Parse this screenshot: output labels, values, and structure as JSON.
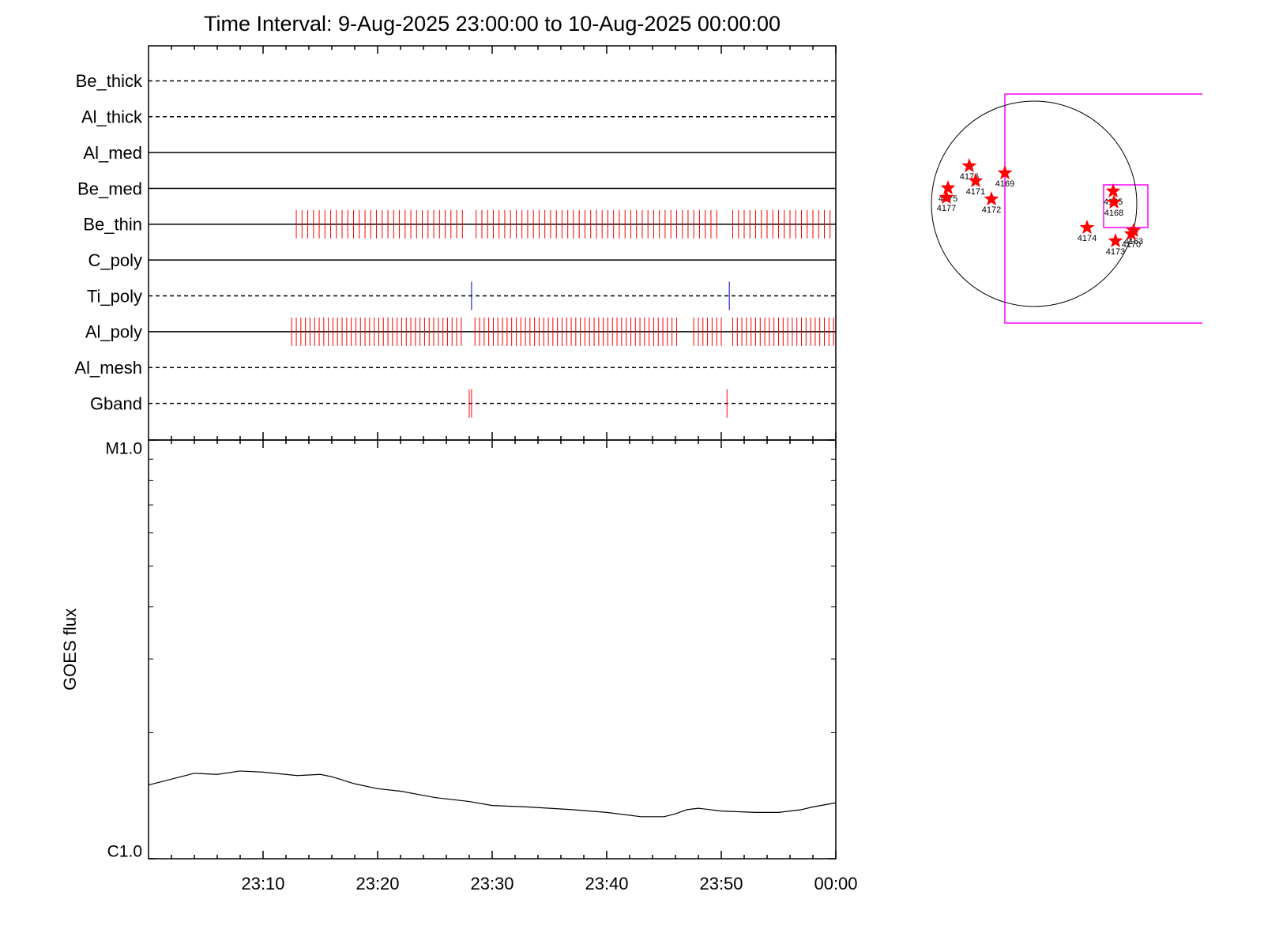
{
  "chart_data": [
    {
      "type": "timeline",
      "title": "Time Interval:  9-Aug-2025 23:00:00 to 10-Aug-2025 00:00:00",
      "categories": [
        "Be_thick",
        "Al_thick",
        "Al_med",
        "Be_med",
        "Be_thin",
        "C_poly",
        "Ti_poly",
        "Al_poly",
        "Al_mesh",
        "Gband"
      ],
      "line_styles": [
        "dashed",
        "dashed",
        "solid",
        "solid",
        "solid",
        "solid",
        "dashed",
        "solid",
        "dashed",
        "dashed"
      ],
      "event_colors": [
        "#ff0000",
        "#ff0000",
        "#ff0000",
        "#ff0000",
        "#ff0000",
        "#ff0000",
        "#0000cc",
        "#ff0000",
        "#ff0000",
        "#ff0000"
      ],
      "events": [
        [],
        [],
        [],
        [],
        [
          12.9,
          13.4,
          13.9,
          14.4,
          14.9,
          15.4,
          15.9,
          16.4,
          16.9,
          17.4,
          17.9,
          18.4,
          18.9,
          19.4,
          19.9,
          20.4,
          20.9,
          21.4,
          21.9,
          22.4,
          22.9,
          23.4,
          23.9,
          24.4,
          24.9,
          25.4,
          25.9,
          26.4,
          26.9,
          27.4,
          28.6,
          29.1,
          29.6,
          30.1,
          30.6,
          31.1,
          31.6,
          32.1,
          32.6,
          33.1,
          33.6,
          34.1,
          34.6,
          35.1,
          35.6,
          36.1,
          36.6,
          37.1,
          37.6,
          38.1,
          38.6,
          39.1,
          39.6,
          40.1,
          40.6,
          41.1,
          41.6,
          42.1,
          42.6,
          43.1,
          43.6,
          44.1,
          44.6,
          45.1,
          45.6,
          46.1,
          46.6,
          47.1,
          47.6,
          48.1,
          48.6,
          49.1,
          49.6,
          51.0,
          51.5,
          52.0,
          52.5,
          53.0,
          53.5,
          54.0,
          54.5,
          55.0,
          55.5,
          56.0,
          56.5,
          57.0,
          57.5,
          58.0,
          58.5,
          59.0,
          59.5
        ],
        [],
        [
          28.2,
          50.7
        ],
        [
          12.5,
          12.9,
          13.3,
          13.7,
          14.1,
          14.5,
          14.9,
          15.3,
          15.7,
          16.1,
          16.5,
          16.9,
          17.3,
          17.7,
          18.1,
          18.5,
          18.9,
          19.3,
          19.7,
          20.1,
          20.5,
          20.9,
          21.3,
          21.7,
          22.1,
          22.5,
          22.9,
          23.3,
          23.7,
          24.1,
          24.5,
          24.9,
          25.3,
          25.7,
          26.1,
          26.5,
          26.9,
          27.3,
          28.5,
          28.9,
          29.3,
          29.7,
          30.1,
          30.5,
          30.9,
          31.3,
          31.7,
          32.1,
          32.5,
          32.9,
          33.3,
          33.7,
          34.1,
          34.5,
          34.9,
          35.3,
          35.7,
          36.1,
          36.5,
          36.9,
          37.3,
          37.7,
          38.1,
          38.5,
          38.9,
          39.3,
          39.7,
          40.1,
          40.5,
          40.9,
          41.3,
          41.7,
          42.1,
          42.5,
          42.9,
          43.3,
          43.7,
          44.1,
          44.5,
          44.9,
          45.3,
          45.7,
          46.1,
          47.6,
          48.0,
          48.4,
          48.8,
          49.2,
          49.6,
          50.0,
          51.0,
          51.4,
          51.8,
          52.2,
          52.6,
          53.0,
          53.4,
          53.8,
          54.2,
          54.6,
          55.0,
          55.4,
          55.8,
          56.2,
          56.6,
          57.0,
          57.4,
          57.8,
          58.2,
          58.6,
          59.0,
          59.4,
          59.8
        ],
        [],
        [
          28.0,
          28.2,
          50.5
        ]
      ]
    },
    {
      "type": "line",
      "ylabel": "GOES flux",
      "log_scale": true,
      "color": "#000000",
      "x": [
        0,
        4,
        6,
        8,
        10,
        13,
        15,
        16,
        18,
        20,
        22,
        25,
        28,
        30,
        33,
        37,
        40,
        43,
        45,
        46,
        47,
        48,
        50,
        53,
        55,
        57,
        58,
        60
      ],
      "values": [
        1.5e-06,
        1.6e-06,
        1.59e-06,
        1.62e-06,
        1.61e-06,
        1.58e-06,
        1.59e-06,
        1.57e-06,
        1.51e-06,
        1.47e-06,
        1.45e-06,
        1.4e-06,
        1.37e-06,
        1.34e-06,
        1.33e-06,
        1.31e-06,
        1.29e-06,
        1.26e-06,
        1.26e-06,
        1.28e-06,
        1.31e-06,
        1.32e-06,
        1.3e-06,
        1.29e-06,
        1.29e-06,
        1.31e-06,
        1.33e-06,
        1.36e-06
      ],
      "xlim": [
        0,
        60
      ],
      "xticks": [
        {
          "value": 10,
          "label": "23:10"
        },
        {
          "value": 20,
          "label": "23:20"
        },
        {
          "value": 30,
          "label": "23:30"
        },
        {
          "value": 40,
          "label": "23:40"
        },
        {
          "value": 50,
          "label": "23:50"
        },
        {
          "value": 60,
          "label": "00:00"
        }
      ],
      "x_minor_ticks": [
        2,
        4,
        6,
        8,
        12,
        14,
        16,
        18,
        22,
        24,
        26,
        28,
        32,
        34,
        36,
        38,
        42,
        44,
        46,
        48,
        52,
        54,
        56,
        58
      ],
      "ylim": [
        1e-06,
        1e-05
      ],
      "yticks": [
        {
          "value": 1e-05,
          "label": "M1.0"
        },
        {
          "value": 1e-06,
          "label": "C1.0"
        }
      ],
      "y_minor_ticks": [
        2e-06,
        3e-06,
        4e-06,
        5e-06,
        6e-06,
        7e-06,
        8e-06,
        9e-06
      ]
    },
    {
      "type": "scatter",
      "color": "#ff0000",
      "xlim": [
        -1000,
        1000
      ],
      "ylim": [
        -1000,
        1000
      ],
      "solar_radius": 960,
      "labels": [
        "4176",
        "4171",
        "4169",
        "4175",
        "4177",
        "4172",
        "4165",
        "4168",
        "4174",
        "4173",
        "4163",
        "4170"
      ],
      "x": [
        -606,
        -547,
        -273,
        -805,
        -820,
        -399,
        739,
        746,
        495,
        761,
        930,
        908
      ],
      "y": [
        354,
        214,
        288,
        148,
        59,
        44,
        118,
        15,
        -222,
        -347,
        -251,
        -281
      ]
    }
  ]
}
